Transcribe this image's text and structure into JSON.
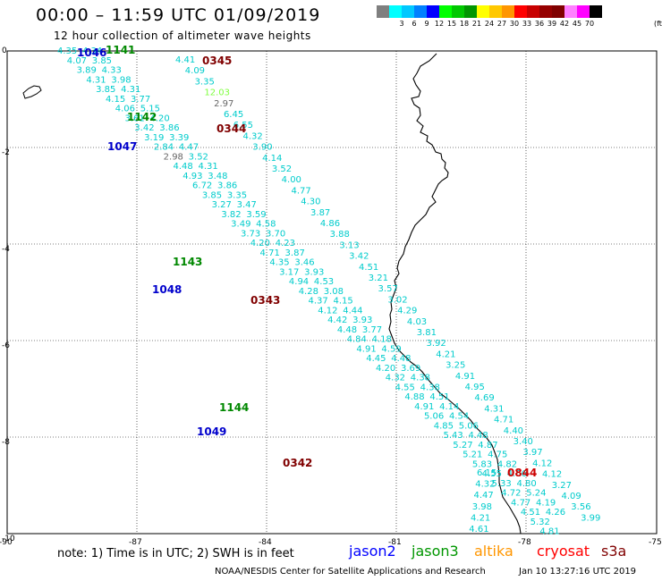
{
  "title": "00:00 – 11:59 UTC 01/09/2019",
  "subtitle": "12 hour collection of altimeter wave heights",
  "colorbar": {
    "unit": "(ft)",
    "colors": [
      "#7f7f7f",
      "#00ffff",
      "#00c8ff",
      "#0080ff",
      "#0000ff",
      "#00ff00",
      "#00c800",
      "#009600",
      "#ffff00",
      "#ffc800",
      "#ff9600",
      "#ff0000",
      "#c80000",
      "#960000",
      "#800000",
      "#ff80ff",
      "#ff00ff",
      "#000000"
    ],
    "labels": [
      "3",
      "6",
      "9",
      "12",
      "15",
      "18",
      "21",
      "24",
      "27",
      "30",
      "33",
      "36",
      "39",
      "42",
      "45",
      "70"
    ]
  },
  "axes": {
    "y_ticks": [
      "0",
      "-2",
      "-4",
      "-6",
      "-8",
      "-10"
    ],
    "x_ticks": [
      "-90",
      "-87",
      "-84",
      "-81",
      "-78",
      "-75"
    ]
  },
  "pass_labels": [
    {
      "text": "1141",
      "color": "#008800"
    },
    {
      "text": "1046",
      "color": "#0000cc"
    },
    {
      "text": "0345",
      "color": "#800000"
    },
    {
      "text": "1142",
      "color": "#008800"
    },
    {
      "text": "0344",
      "color": "#800000"
    },
    {
      "text": "1047",
      "color": "#0000cc"
    },
    {
      "text": "1143",
      "color": "#008800"
    },
    {
      "text": "1048",
      "color": "#0000cc"
    },
    {
      "text": "0343",
      "color": "#800000"
    },
    {
      "text": "1144",
      "color": "#008800"
    },
    {
      "text": "1049",
      "color": "#0000cc"
    },
    {
      "text": "0342",
      "color": "#800000"
    },
    {
      "text": "0844",
      "color": "#cc0000"
    }
  ],
  "tracks": [
    {
      "name": "track-a",
      "values": [
        "4.35",
        "4.07",
        "3.89",
        "4.31",
        "3.85",
        "4.15",
        "4.06",
        "3.61",
        "3.42",
        "3.19",
        "2.84",
        "2.98",
        "4.48",
        "4.93",
        "6.72",
        "3.85",
        "3.27",
        "3.82",
        "3.49",
        "3.73",
        "4.20",
        "4.71",
        "4.35",
        "3.17",
        "4.94",
        "4.28",
        "4.37",
        "4.12",
        "4.42",
        "4.48",
        "4.84",
        "4.91",
        "4.45",
        "4.20",
        "4.32",
        "4.55",
        "4.88",
        "4.91",
        "5.06",
        "4.85",
        "5.43",
        "5.27",
        "5.21",
        "5.83",
        "4.55",
        "5.33",
        "4.72",
        "4.77",
        "4.51",
        "5.32",
        "4.81"
      ]
    },
    {
      "name": "track-b",
      "values": [
        "4.34",
        "3.85",
        "4.33",
        "3.98",
        "4.31",
        "3.77",
        "5.15",
        "4.20",
        "3.86",
        "3.39",
        "4.47",
        "3.52",
        "4.31",
        "3.48",
        "3.86",
        "3.35",
        "3.47",
        "3.59",
        "4.58",
        "3.70",
        "4.23",
        "3.87",
        "3.46",
        "3.93",
        "4.53",
        "3.08",
        "4.15",
        "4.44",
        "3.93",
        "3.77",
        "4.18",
        "4.59",
        "4.48",
        "3.69",
        "4.38",
        "4.38",
        "4.51",
        "4.14",
        "4.54",
        "5.06",
        "4.48",
        "4.87",
        "4.75",
        "4.82",
        "4.66",
        "4.80",
        "5.24",
        "4.19",
        "4.26"
      ]
    },
    {
      "name": "track-c",
      "values": [
        "4.41",
        "4.09",
        "3.35",
        "12.03",
        "2.97",
        "6.45",
        "6.55",
        "4.32",
        "3.90",
        "4.14",
        "3.52",
        "4.00",
        "4.77",
        "4.30",
        "3.87",
        "4.86",
        "3.88",
        "3.13",
        "3.42",
        "4.51",
        "3.21",
        "3.57",
        "3.02",
        "4.29",
        "4.03",
        "3.81",
        "3.92",
        "4.21",
        "3.25",
        "4.91",
        "4.95",
        "4.69",
        "4.31",
        "4.71",
        "4.40",
        "3.40",
        "3.97",
        "4.12",
        "4.12",
        "3.27",
        "4.09",
        "3.56",
        "3.99"
      ]
    },
    {
      "name": "track-d",
      "values": [
        "6.15",
        "4.32",
        "4.47",
        "3.98",
        "4.21",
        "4.61"
      ]
    }
  ],
  "footnote": "note:  1) Time is in UTC;  2) SWH is in feet",
  "legend": [
    {
      "text": "jason2",
      "color": "#0000ff"
    },
    {
      "text": "jason3",
      "color": "#009600"
    },
    {
      "text": "altika",
      "color": "#ff9600"
    },
    {
      "text": "cryosat",
      "color": "#ff0000"
    },
    {
      "text": "s3a",
      "color": "#800000"
    }
  ],
  "credit": "NOAA/NESDIS Center for Satellite Applications and Research",
  "timestamp": "Jan 10 13:27:16 UTC 2019"
}
